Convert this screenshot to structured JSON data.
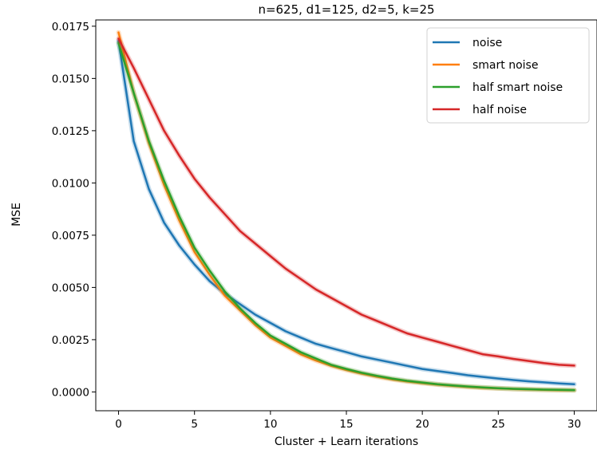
{
  "chart_data": {
    "type": "line",
    "title": "n=625, d1=125, d2=5, k=25",
    "xlabel": "Cluster + Learn iterations",
    "ylabel": "MSE",
    "xlim": [
      -1.5,
      31.5
    ],
    "ylim": [
      -0.0009,
      0.0178
    ],
    "x_ticks": [
      "0",
      "5",
      "10",
      "15",
      "20",
      "25",
      "30"
    ],
    "y_ticks": [
      "0.0000",
      "0.0025",
      "0.0050",
      "0.0075",
      "0.0100",
      "0.0125",
      "0.0150",
      "0.0175"
    ],
    "grid": false,
    "legend_position": "top-right",
    "x": [
      0,
      1,
      2,
      3,
      4,
      5,
      6,
      7,
      8,
      9,
      10,
      11,
      12,
      13,
      14,
      15,
      16,
      17,
      18,
      19,
      20,
      21,
      22,
      23,
      24,
      25,
      26,
      27,
      28,
      29,
      30
    ],
    "series": [
      {
        "name": "noise",
        "color": "#1f77b4",
        "values": [
          0.0168,
          0.012,
          0.0097,
          0.0081,
          0.007,
          0.0061,
          0.0053,
          0.0047,
          0.0042,
          0.0037,
          0.0033,
          0.0029,
          0.0026,
          0.0023,
          0.0021,
          0.0019,
          0.0017,
          0.00155,
          0.0014,
          0.00125,
          0.0011,
          0.001,
          0.0009,
          0.0008,
          0.00072,
          0.00064,
          0.00057,
          0.00051,
          0.00046,
          0.00041,
          0.00037
        ]
      },
      {
        "name": "smart noise",
        "color": "#ff7f0e",
        "values": [
          0.0172,
          0.0143,
          0.0119,
          0.0099,
          0.0082,
          0.0067,
          0.0056,
          0.0046,
          0.0039,
          0.0032,
          0.0026,
          0.0022,
          0.0018,
          0.0015,
          0.00125,
          0.00105,
          0.00088,
          0.00073,
          0.0006,
          0.0005,
          0.00042,
          0.00035,
          0.00029,
          0.00024,
          0.0002,
          0.00017,
          0.00014,
          0.00012,
          0.0001,
          9e-05,
          8e-05
        ]
      },
      {
        "name": "half smart noise",
        "color": "#2ca02c",
        "values": [
          0.0167,
          0.0143,
          0.012,
          0.0101,
          0.0084,
          0.0069,
          0.0058,
          0.0048,
          0.004,
          0.0033,
          0.0027,
          0.0023,
          0.0019,
          0.0016,
          0.0013,
          0.0011,
          0.00092,
          0.00077,
          0.00064,
          0.00053,
          0.00045,
          0.00037,
          0.00031,
          0.00026,
          0.00022,
          0.00018,
          0.00015,
          0.00013,
          0.00011,
          0.0001,
          9e-05
        ]
      },
      {
        "name": "half noise",
        "color": "#d62728",
        "values": [
          0.0169,
          0.0155,
          0.014,
          0.0125,
          0.0113,
          0.0102,
          0.0093,
          0.0085,
          0.0077,
          0.0071,
          0.0065,
          0.0059,
          0.0054,
          0.0049,
          0.0045,
          0.0041,
          0.0037,
          0.0034,
          0.0031,
          0.0028,
          0.0026,
          0.0024,
          0.0022,
          0.002,
          0.0018,
          0.0017,
          0.00158,
          0.00148,
          0.00138,
          0.0013,
          0.00126
        ]
      }
    ]
  }
}
